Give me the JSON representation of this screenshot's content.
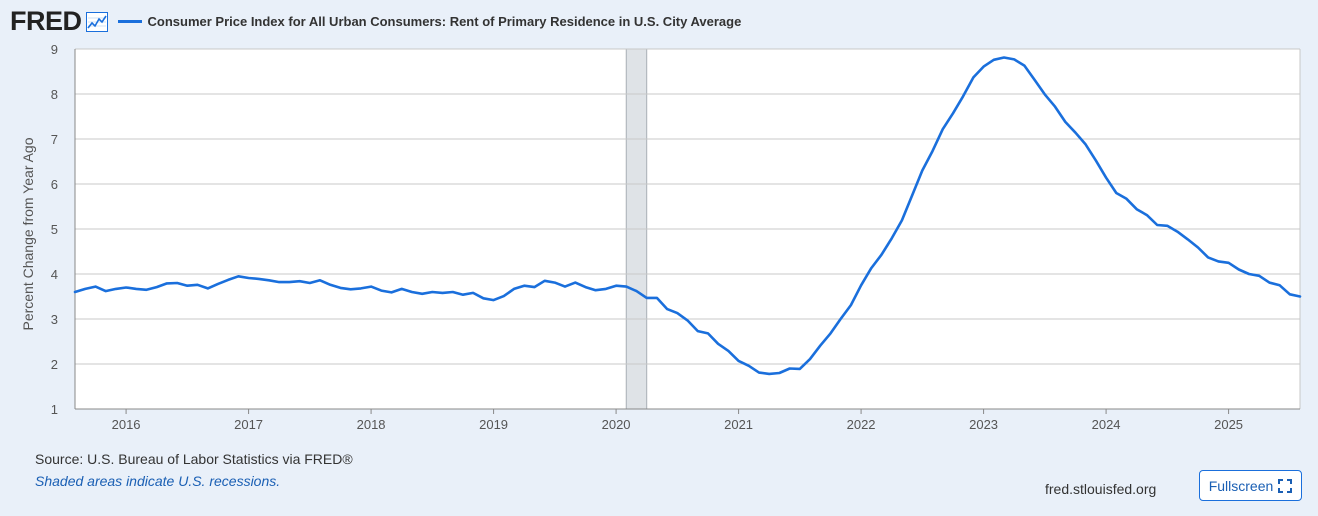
{
  "brand": {
    "logo_text": "FRED"
  },
  "header": {
    "series_title": "Consumer Price Index for All Urban Consumers: Rent of Primary Residence in U.S. City Average"
  },
  "footer": {
    "source": "Source: U.S. Bureau of Labor Statistics via FRED®",
    "recession_note": "Shaded areas indicate U.S. recessions.",
    "site": "fred.stlouisfed.org",
    "fullscreen_label": "Fullscreen"
  },
  "colors": {
    "line": "#1a6fdc",
    "recession": "#dfe3e7",
    "grid": "#c8c8c8",
    "background": "#e9f0f9",
    "plot": "#ffffff"
  },
  "chart_data": {
    "type": "line",
    "title": "Consumer Price Index for All Urban Consumers: Rent of Primary Residence in U.S. City Average",
    "xlabel": "",
    "ylabel": "Percent Change from Year Ago",
    "ylim": [
      1,
      9
    ],
    "yticks": [
      1,
      2,
      3,
      4,
      5,
      6,
      7,
      8,
      9
    ],
    "xlim": [
      2015.583,
      2025.583
    ],
    "xticks": [
      2016,
      2017,
      2018,
      2019,
      2020,
      2021,
      2022,
      2023,
      2024,
      2025
    ],
    "grid": true,
    "legend": "top-left",
    "recessions": [
      {
        "start": 2020.083,
        "end": 2020.25
      }
    ],
    "series": [
      {
        "name": "Consumer Price Index for All Urban Consumers: Rent of Primary Residence in U.S. City Average",
        "x": [
          2015.583,
          2015.667,
          2015.75,
          2015.833,
          2015.917,
          2016.0,
          2016.083,
          2016.167,
          2016.25,
          2016.333,
          2016.417,
          2016.5,
          2016.583,
          2016.667,
          2016.75,
          2016.833,
          2016.917,
          2017.0,
          2017.083,
          2017.167,
          2017.25,
          2017.333,
          2017.417,
          2017.5,
          2017.583,
          2017.667,
          2017.75,
          2017.833,
          2017.917,
          2018.0,
          2018.083,
          2018.167,
          2018.25,
          2018.333,
          2018.417,
          2018.5,
          2018.583,
          2018.667,
          2018.75,
          2018.833,
          2018.917,
          2019.0,
          2019.083,
          2019.167,
          2019.25,
          2019.333,
          2019.417,
          2019.5,
          2019.583,
          2019.667,
          2019.75,
          2019.833,
          2019.917,
          2020.0,
          2020.083,
          2020.167,
          2020.25,
          2020.333,
          2020.417,
          2020.5,
          2020.583,
          2020.667,
          2020.75,
          2020.833,
          2020.917,
          2021.0,
          2021.083,
          2021.167,
          2021.25,
          2021.333,
          2021.417,
          2021.5,
          2021.583,
          2021.667,
          2021.75,
          2021.833,
          2021.917,
          2022.0,
          2022.083,
          2022.167,
          2022.25,
          2022.333,
          2022.417,
          2022.5,
          2022.583,
          2022.667,
          2022.75,
          2022.833,
          2022.917,
          2023.0,
          2023.083,
          2023.167,
          2023.25,
          2023.333,
          2023.417,
          2023.5,
          2023.583,
          2023.667,
          2023.75,
          2023.833,
          2023.917,
          2024.0,
          2024.083,
          2024.167,
          2024.25,
          2024.333,
          2024.417,
          2024.5,
          2024.583,
          2024.667,
          2024.75,
          2024.833,
          2024.917,
          2025.0,
          2025.083,
          2025.167,
          2025.25,
          2025.333,
          2025.417,
          2025.5,
          2025.583
        ],
        "values": [
          3.6,
          3.67,
          3.72,
          3.62,
          3.67,
          3.7,
          3.67,
          3.65,
          3.71,
          3.79,
          3.8,
          3.74,
          3.76,
          3.68,
          3.78,
          3.87,
          3.95,
          3.91,
          3.89,
          3.86,
          3.82,
          3.82,
          3.84,
          3.8,
          3.86,
          3.76,
          3.69,
          3.66,
          3.68,
          3.72,
          3.63,
          3.59,
          3.67,
          3.6,
          3.56,
          3.6,
          3.58,
          3.6,
          3.54,
          3.58,
          3.46,
          3.42,
          3.51,
          3.67,
          3.74,
          3.71,
          3.85,
          3.81,
          3.72,
          3.81,
          3.71,
          3.64,
          3.67,
          3.74,
          3.72,
          3.62,
          3.47,
          3.47,
          3.22,
          3.13,
          2.97,
          2.73,
          2.68,
          2.45,
          2.29,
          2.07,
          1.96,
          1.81,
          1.78,
          1.8,
          1.9,
          1.89,
          2.11,
          2.41,
          2.68,
          3.0,
          3.31,
          3.75,
          4.13,
          4.43,
          4.79,
          5.19,
          5.75,
          6.3,
          6.73,
          7.22,
          7.57,
          7.95,
          8.37,
          8.61,
          8.76,
          8.81,
          8.77,
          8.63,
          8.31,
          7.99,
          7.72,
          7.38,
          7.14,
          6.88,
          6.52,
          6.14,
          5.8,
          5.67,
          5.44,
          5.31,
          5.09,
          5.07,
          4.94,
          4.77,
          4.59,
          4.37,
          4.28,
          4.25,
          4.1,
          4.0,
          3.96,
          3.81,
          3.75,
          3.55,
          3.5
        ]
      }
    ]
  }
}
